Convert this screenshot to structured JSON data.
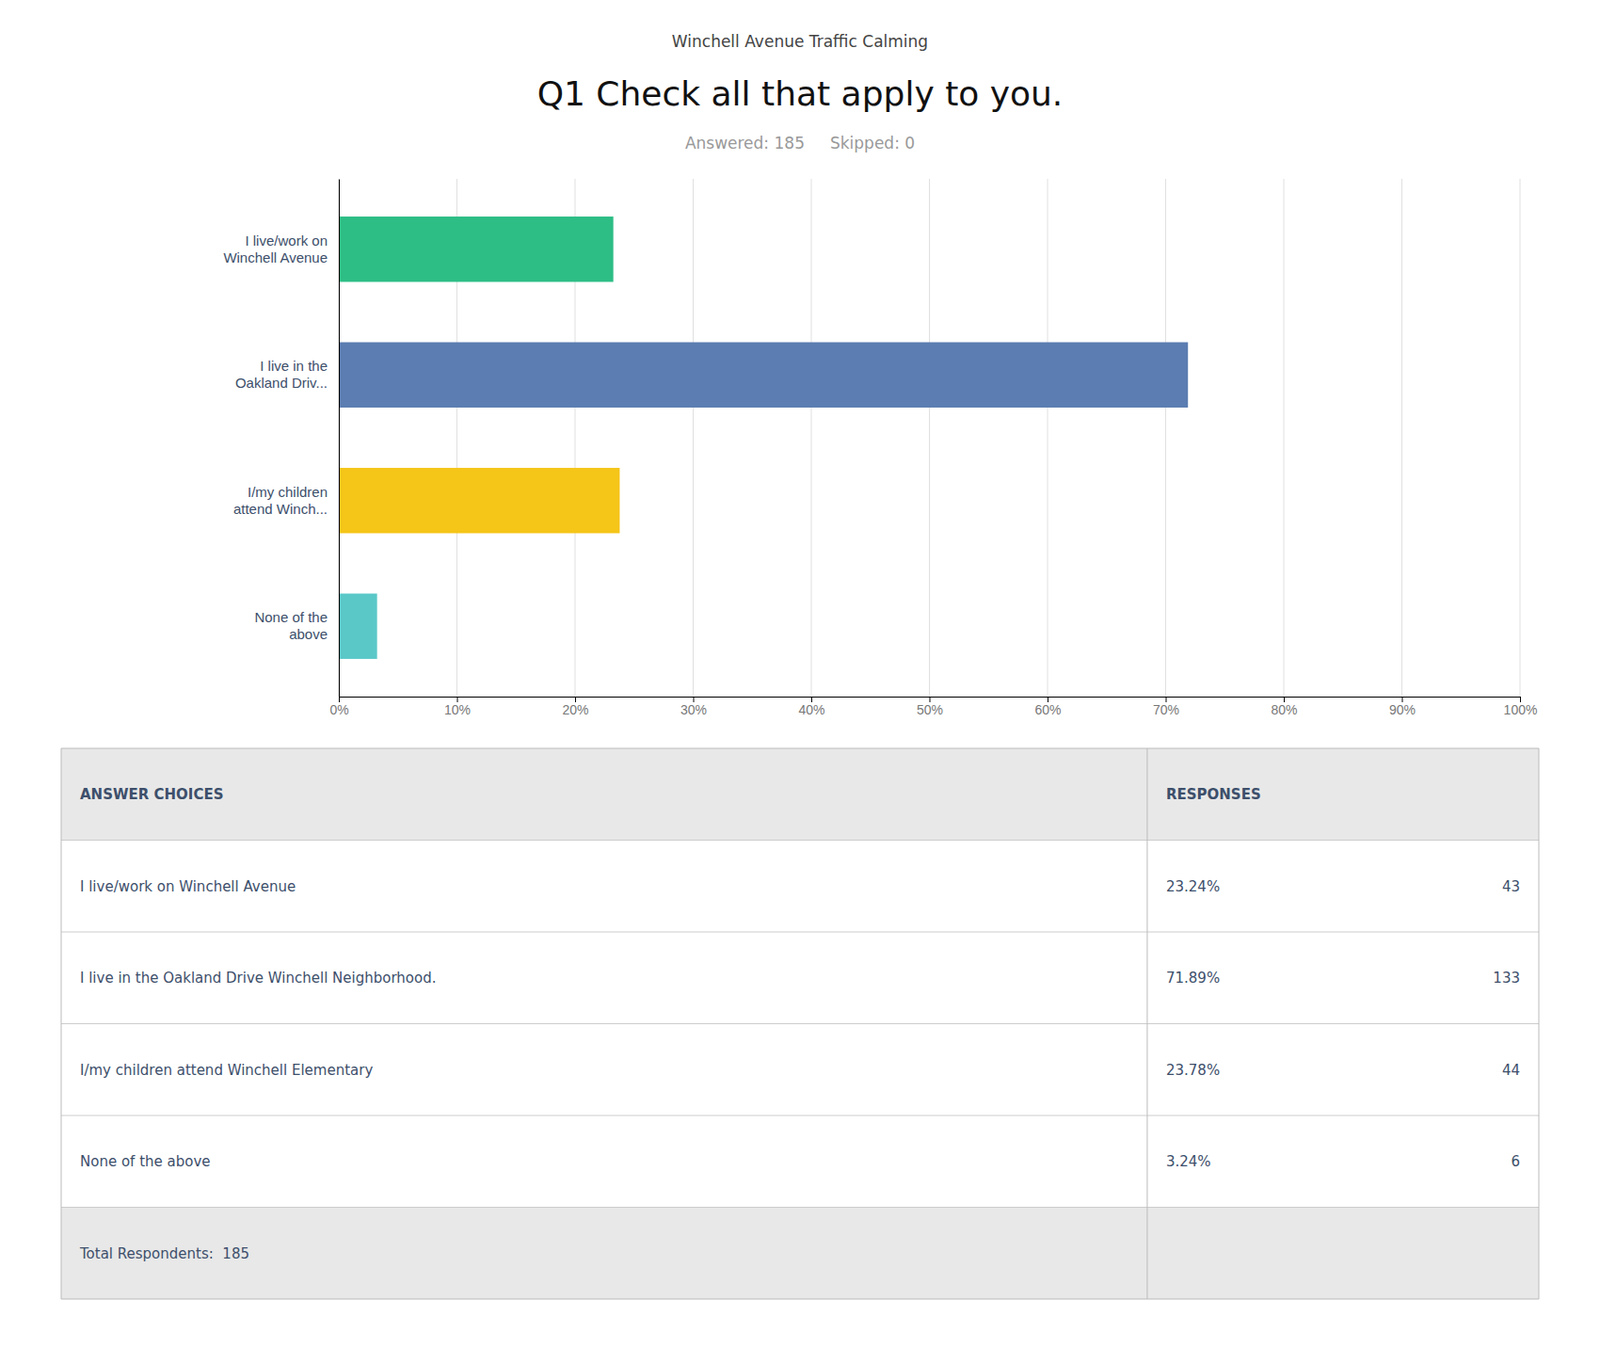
{
  "chart_data": {
    "type": "bar",
    "orientation": "horizontal",
    "suptitle": "Winchell Avenue Traffic Calming",
    "title": "Q1 Check all that apply to you.",
    "subtitle": "Answered: 185     Skipped: 0",
    "categories": [
      "I live/work on\nWinchell Avenue",
      "I live in the\nOakland Driv...",
      "I/my children\nattend Winch...",
      "None of the\nabove"
    ],
    "values": [
      23.24,
      71.89,
      23.78,
      3.24
    ],
    "colors": [
      "#2dbe85",
      "#5b7db1",
      "#f5c518",
      "#5bc8c8"
    ],
    "xlim": [
      0,
      100
    ],
    "xticks": [
      {
        "value": 0,
        "label": "0%"
      },
      {
        "value": 10,
        "label": "10%"
      },
      {
        "value": 20,
        "label": "20%"
      },
      {
        "value": 30,
        "label": "30%"
      },
      {
        "value": 40,
        "label": "40%"
      },
      {
        "value": 50,
        "label": "50%"
      },
      {
        "value": 60,
        "label": "60%"
      },
      {
        "value": 70,
        "label": "70%"
      },
      {
        "value": 80,
        "label": "80%"
      },
      {
        "value": 90,
        "label": "90%"
      },
      {
        "value": 100,
        "label": "100%"
      }
    ],
    "grid": true,
    "table": {
      "header": [
        "ANSWER CHOICES",
        "RESPONSES"
      ],
      "rows": [
        [
          "I live/work on Winchell Avenue",
          "23.24%",
          "43"
        ],
        [
          "I live in the Oakland Drive Winchell Neighborhood.",
          "71.89%",
          "133"
        ],
        [
          "I/my children attend Winchell Elementary",
          "23.78%",
          "44"
        ],
        [
          "None of the above",
          "3.24%",
          "6"
        ]
      ],
      "footer": "Total Respondents:  185"
    }
  }
}
